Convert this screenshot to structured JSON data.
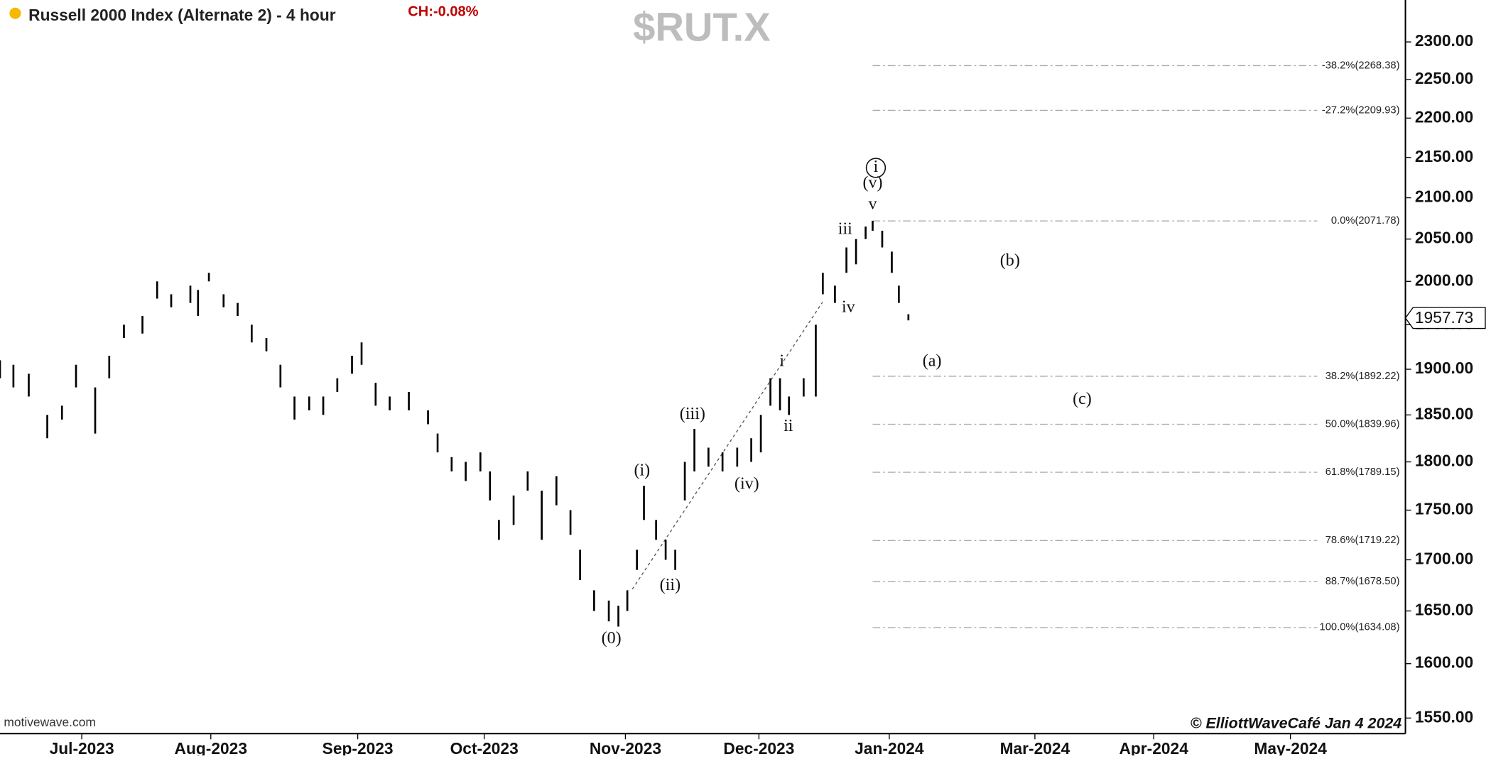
{
  "chart_data": {
    "type": "ohlc",
    "title": "Russell 2000 Index (Alternate 2) - 4 hour",
    "change": "CH:-0.08%",
    "watermark": "$RUT.X",
    "source": "motivewave.com",
    "credit": "© ElliottWaveCafé Jan 4 2024",
    "log_scale": true,
    "color": "#000000",
    "ylim": [
      1536,
      2357
    ],
    "yticks": [
      {
        "value": 1550,
        "label": "1550.00"
      },
      {
        "value": 1600,
        "label": "1600.00"
      },
      {
        "value": 1650,
        "label": "1650.00"
      },
      {
        "value": 1700,
        "label": "1700.00"
      },
      {
        "value": 1750,
        "label": "1750.00"
      },
      {
        "value": 1800,
        "label": "1800.00"
      },
      {
        "value": 1850,
        "label": "1850.00"
      },
      {
        "value": 1900,
        "label": "1900.00"
      },
      {
        "value": 1950,
        "label": "1950.00"
      },
      {
        "value": 2000,
        "label": "2000.00"
      },
      {
        "value": 2050,
        "label": "2050.00"
      },
      {
        "value": 2100,
        "label": "2100.00"
      },
      {
        "value": 2150,
        "label": "2150.00"
      },
      {
        "value": 2200,
        "label": "2200.00"
      },
      {
        "value": 2250,
        "label": "2250.00"
      },
      {
        "value": 2300,
        "label": "2300.00"
      }
    ],
    "xlim": [
      0,
      220
    ],
    "xticks": [
      {
        "value": 12.8,
        "label": "Jul-2023"
      },
      {
        "value": 33.0,
        "label": "Aug-2023"
      },
      {
        "value": 56.0,
        "label": "Sep-2023"
      },
      {
        "value": 75.8,
        "label": "Oct-2023"
      },
      {
        "value": 97.9,
        "label": "Nov-2023"
      },
      {
        "value": 118.8,
        "label": "Dec-2023"
      },
      {
        "value": 139.2,
        "label": "Jan-2024"
      },
      {
        "value": 162.0,
        "label": "Mar-2024"
      },
      {
        "value": 180.6,
        "label": "Apr-2024"
      },
      {
        "value": 202.0,
        "label": "May-2024"
      }
    ],
    "x": [
      0,
      2.1,
      4.5,
      7.4,
      9.7,
      11.9,
      14.9,
      17.1,
      19.4,
      22.3,
      24.6,
      26.8,
      29.8,
      31.0,
      32.7,
      35.0,
      37.2,
      39.4,
      41.7,
      43.9,
      46.1,
      48.4,
      50.6,
      52.8,
      55.1,
      56.6,
      58.8,
      61.0,
      64.0,
      67.0,
      68.5,
      70.7,
      72.9,
      75.2,
      76.7,
      78.1,
      80.4,
      82.6,
      84.8,
      87.1,
      89.3,
      90.8,
      93.0,
      95.3,
      96.8,
      98.2,
      99.7,
      100.8,
      102.7,
      104.2,
      105.7,
      107.2,
      108.7,
      110.9,
      113.1,
      115.4,
      117.6,
      119.1,
      120.6,
      122.1,
      123.5,
      125.8,
      127.7,
      128.8,
      130.7,
      132.5,
      134.0,
      135.5,
      136.6,
      138.1,
      139.6,
      140.7,
      142.2
    ],
    "high": [
      1910,
      1905,
      1895,
      1850,
      1860,
      1905,
      1880,
      1915,
      1950,
      1960,
      2000,
      1985,
      1995,
      1990,
      2010,
      1985,
      1975,
      1950,
      1935,
      1905,
      1870,
      1870,
      1870,
      1890,
      1915,
      1930,
      1885,
      1870,
      1875,
      1855,
      1830,
      1805,
      1800,
      1810,
      1790,
      1740,
      1765,
      1790,
      1770,
      1785,
      1750,
      1710,
      1670,
      1660,
      1655,
      1670,
      1710,
      1775,
      1740,
      1720,
      1710,
      1800,
      1835,
      1815,
      1810,
      1815,
      1825,
      1850,
      1890,
      1890,
      1870,
      1890,
      1950,
      2010,
      1995,
      2040,
      2050,
      2065,
      2072,
      2060,
      2035,
      1995,
      1962
    ],
    "low": [
      1890,
      1880,
      1870,
      1825,
      1845,
      1880,
      1830,
      1890,
      1935,
      1940,
      1980,
      1970,
      1975,
      1960,
      2000,
      1970,
      1960,
      1930,
      1920,
      1880,
      1845,
      1855,
      1850,
      1875,
      1895,
      1905,
      1860,
      1855,
      1855,
      1840,
      1810,
      1790,
      1780,
      1790,
      1760,
      1720,
      1735,
      1770,
      1720,
      1755,
      1725,
      1680,
      1650,
      1640,
      1635,
      1650,
      1690,
      1740,
      1720,
      1700,
      1690,
      1760,
      1790,
      1795,
      1790,
      1795,
      1800,
      1810,
      1860,
      1855,
      1850,
      1870,
      1870,
      1985,
      1975,
      2010,
      2020,
      2050,
      2060,
      2040,
      2010,
      1975,
      1955
    ],
    "last_price": 1957.73,
    "levels_x": [
      136.6,
      206.2
    ],
    "levels": [
      {
        "label": "-38.2%(2268.38)",
        "value": 2268.38
      },
      {
        "label": "-27.2%(2209.93)",
        "value": 2209.93
      },
      {
        "label": "0.0%(2071.78)",
        "value": 2071.78
      },
      {
        "label": "38.2%(1892.22)",
        "value": 1892.22
      },
      {
        "label": "50.0%(1839.96)",
        "value": 1839.96
      },
      {
        "label": "61.8%(1789.15)",
        "value": 1789.15
      },
      {
        "label": "78.6%(1719.22)",
        "value": 1719.22
      },
      {
        "label": "88.7%(1678.50)",
        "value": 1678.5
      },
      {
        "label": "100.0%(1634.08)",
        "value": 1634.08
      }
    ],
    "annotations": [
      {
        "text": "(0)",
        "x": 95.7,
        "price": 1623
      },
      {
        "text": "(i)",
        "x": 100.5,
        "price": 1790
      },
      {
        "text": "(ii)",
        "x": 104.9,
        "price": 1674
      },
      {
        "text": "(iii)",
        "x": 108.4,
        "price": 1850
      },
      {
        "text": "(iv)",
        "x": 116.9,
        "price": 1776
      },
      {
        "text": "i",
        "x": 122.4,
        "price": 1908
      },
      {
        "text": "ii",
        "x": 123.4,
        "price": 1837
      },
      {
        "text": "iii",
        "x": 132.3,
        "price": 2061
      },
      {
        "text": "iv",
        "x": 132.8,
        "price": 1969
      },
      {
        "text": "v",
        "x": 136.6,
        "price": 2091
      },
      {
        "text": "(v)",
        "x": 136.6,
        "price": 2117
      },
      {
        "text": "i",
        "x": 137.1,
        "price": 2137,
        "circled": true
      },
      {
        "text": "(a)",
        "x": 145.9,
        "price": 1908
      },
      {
        "text": "(b)",
        "x": 158.1,
        "price": 2023
      },
      {
        "text": "(c)",
        "x": 169.4,
        "price": 1866
      }
    ]
  }
}
